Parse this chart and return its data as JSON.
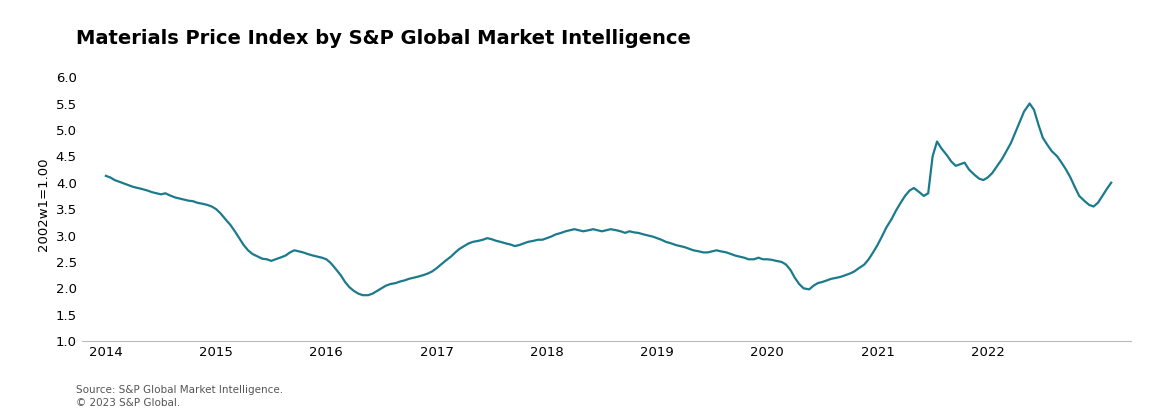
{
  "title": "Materials Price Index by S&P Global Market Intelligence",
  "ylabel": "2002w1=1.00",
  "source_line1": "Source: S&P Global Market Intelligence.",
  "source_line2": "© 2023 S&P Global.",
  "line_color": "#1b7b8c",
  "line_width": 1.6,
  "background_color": "#ffffff",
  "ylim": [
    1.0,
    6.2
  ],
  "yticks": [
    1.0,
    1.5,
    2.0,
    2.5,
    3.0,
    3.5,
    4.0,
    4.5,
    5.0,
    5.5,
    6.0
  ],
  "title_fontsize": 14,
  "axis_fontsize": 9.5,
  "source_fontsize": 7.5,
  "data_points": [
    [
      2014.0,
      4.13
    ],
    [
      2014.04,
      4.1
    ],
    [
      2014.08,
      4.05
    ],
    [
      2014.12,
      4.02
    ],
    [
      2014.17,
      3.98
    ],
    [
      2014.21,
      3.95
    ],
    [
      2014.25,
      3.92
    ],
    [
      2014.29,
      3.9
    ],
    [
      2014.33,
      3.88
    ],
    [
      2014.38,
      3.85
    ],
    [
      2014.42,
      3.82
    ],
    [
      2014.46,
      3.8
    ],
    [
      2014.5,
      3.78
    ],
    [
      2014.54,
      3.8
    ],
    [
      2014.58,
      3.76
    ],
    [
      2014.63,
      3.72
    ],
    [
      2014.67,
      3.7
    ],
    [
      2014.71,
      3.68
    ],
    [
      2014.75,
      3.66
    ],
    [
      2014.79,
      3.65
    ],
    [
      2014.83,
      3.62
    ],
    [
      2014.88,
      3.6
    ],
    [
      2014.92,
      3.58
    ],
    [
      2014.96,
      3.55
    ],
    [
      2015.0,
      3.5
    ],
    [
      2015.04,
      3.42
    ],
    [
      2015.08,
      3.32
    ],
    [
      2015.13,
      3.2
    ],
    [
      2015.17,
      3.08
    ],
    [
      2015.21,
      2.95
    ],
    [
      2015.25,
      2.82
    ],
    [
      2015.29,
      2.72
    ],
    [
      2015.33,
      2.65
    ],
    [
      2015.38,
      2.6
    ],
    [
      2015.42,
      2.56
    ],
    [
      2015.46,
      2.55
    ],
    [
      2015.5,
      2.52
    ],
    [
      2015.54,
      2.55
    ],
    [
      2015.58,
      2.58
    ],
    [
      2015.63,
      2.62
    ],
    [
      2015.67,
      2.68
    ],
    [
      2015.71,
      2.72
    ],
    [
      2015.75,
      2.7
    ],
    [
      2015.79,
      2.68
    ],
    [
      2015.83,
      2.65
    ],
    [
      2015.88,
      2.62
    ],
    [
      2015.92,
      2.6
    ],
    [
      2015.96,
      2.58
    ],
    [
      2016.0,
      2.55
    ],
    [
      2016.04,
      2.48
    ],
    [
      2016.08,
      2.38
    ],
    [
      2016.13,
      2.25
    ],
    [
      2016.17,
      2.12
    ],
    [
      2016.21,
      2.02
    ],
    [
      2016.25,
      1.95
    ],
    [
      2016.29,
      1.9
    ],
    [
      2016.33,
      1.87
    ],
    [
      2016.38,
      1.87
    ],
    [
      2016.42,
      1.9
    ],
    [
      2016.46,
      1.95
    ],
    [
      2016.5,
      2.0
    ],
    [
      2016.54,
      2.05
    ],
    [
      2016.58,
      2.08
    ],
    [
      2016.63,
      2.1
    ],
    [
      2016.67,
      2.13
    ],
    [
      2016.71,
      2.15
    ],
    [
      2016.75,
      2.18
    ],
    [
      2016.79,
      2.2
    ],
    [
      2016.83,
      2.22
    ],
    [
      2016.88,
      2.25
    ],
    [
      2016.92,
      2.28
    ],
    [
      2016.96,
      2.32
    ],
    [
      2017.0,
      2.38
    ],
    [
      2017.04,
      2.45
    ],
    [
      2017.08,
      2.52
    ],
    [
      2017.13,
      2.6
    ],
    [
      2017.17,
      2.68
    ],
    [
      2017.21,
      2.75
    ],
    [
      2017.25,
      2.8
    ],
    [
      2017.29,
      2.85
    ],
    [
      2017.33,
      2.88
    ],
    [
      2017.38,
      2.9
    ],
    [
      2017.42,
      2.92
    ],
    [
      2017.46,
      2.95
    ],
    [
      2017.5,
      2.93
    ],
    [
      2017.54,
      2.9
    ],
    [
      2017.58,
      2.88
    ],
    [
      2017.63,
      2.85
    ],
    [
      2017.67,
      2.83
    ],
    [
      2017.71,
      2.8
    ],
    [
      2017.75,
      2.82
    ],
    [
      2017.79,
      2.85
    ],
    [
      2017.83,
      2.88
    ],
    [
      2017.88,
      2.9
    ],
    [
      2017.92,
      2.92
    ],
    [
      2017.96,
      2.92
    ],
    [
      2018.0,
      2.95
    ],
    [
      2018.04,
      2.98
    ],
    [
      2018.08,
      3.02
    ],
    [
      2018.13,
      3.05
    ],
    [
      2018.17,
      3.08
    ],
    [
      2018.21,
      3.1
    ],
    [
      2018.25,
      3.12
    ],
    [
      2018.29,
      3.1
    ],
    [
      2018.33,
      3.08
    ],
    [
      2018.38,
      3.1
    ],
    [
      2018.42,
      3.12
    ],
    [
      2018.46,
      3.1
    ],
    [
      2018.5,
      3.08
    ],
    [
      2018.54,
      3.1
    ],
    [
      2018.58,
      3.12
    ],
    [
      2018.63,
      3.1
    ],
    [
      2018.67,
      3.08
    ],
    [
      2018.71,
      3.05
    ],
    [
      2018.75,
      3.08
    ],
    [
      2018.79,
      3.06
    ],
    [
      2018.83,
      3.05
    ],
    [
      2018.88,
      3.02
    ],
    [
      2018.92,
      3.0
    ],
    [
      2018.96,
      2.98
    ],
    [
      2019.0,
      2.95
    ],
    [
      2019.04,
      2.92
    ],
    [
      2019.08,
      2.88
    ],
    [
      2019.13,
      2.85
    ],
    [
      2019.17,
      2.82
    ],
    [
      2019.21,
      2.8
    ],
    [
      2019.25,
      2.78
    ],
    [
      2019.29,
      2.75
    ],
    [
      2019.33,
      2.72
    ],
    [
      2019.38,
      2.7
    ],
    [
      2019.42,
      2.68
    ],
    [
      2019.46,
      2.68
    ],
    [
      2019.5,
      2.7
    ],
    [
      2019.54,
      2.72
    ],
    [
      2019.58,
      2.7
    ],
    [
      2019.63,
      2.68
    ],
    [
      2019.67,
      2.65
    ],
    [
      2019.71,
      2.62
    ],
    [
      2019.75,
      2.6
    ],
    [
      2019.79,
      2.58
    ],
    [
      2019.83,
      2.55
    ],
    [
      2019.88,
      2.55
    ],
    [
      2019.92,
      2.58
    ],
    [
      2019.96,
      2.55
    ],
    [
      2020.0,
      2.55
    ],
    [
      2020.04,
      2.54
    ],
    [
      2020.08,
      2.52
    ],
    [
      2020.13,
      2.5
    ],
    [
      2020.17,
      2.45
    ],
    [
      2020.21,
      2.35
    ],
    [
      2020.25,
      2.2
    ],
    [
      2020.29,
      2.08
    ],
    [
      2020.33,
      2.0
    ],
    [
      2020.38,
      1.98
    ],
    [
      2020.42,
      2.05
    ],
    [
      2020.46,
      2.1
    ],
    [
      2020.5,
      2.12
    ],
    [
      2020.54,
      2.15
    ],
    [
      2020.58,
      2.18
    ],
    [
      2020.63,
      2.2
    ],
    [
      2020.67,
      2.22
    ],
    [
      2020.71,
      2.25
    ],
    [
      2020.75,
      2.28
    ],
    [
      2020.79,
      2.32
    ],
    [
      2020.83,
      2.38
    ],
    [
      2020.88,
      2.45
    ],
    [
      2020.92,
      2.55
    ],
    [
      2020.96,
      2.68
    ],
    [
      2021.0,
      2.82
    ],
    [
      2021.04,
      2.98
    ],
    [
      2021.08,
      3.15
    ],
    [
      2021.13,
      3.32
    ],
    [
      2021.17,
      3.48
    ],
    [
      2021.21,
      3.62
    ],
    [
      2021.25,
      3.75
    ],
    [
      2021.29,
      3.85
    ],
    [
      2021.33,
      3.9
    ],
    [
      2021.38,
      3.82
    ],
    [
      2021.42,
      3.75
    ],
    [
      2021.46,
      3.8
    ],
    [
      2021.5,
      4.5
    ],
    [
      2021.54,
      4.78
    ],
    [
      2021.58,
      4.65
    ],
    [
      2021.63,
      4.52
    ],
    [
      2021.67,
      4.4
    ],
    [
      2021.71,
      4.32
    ],
    [
      2021.75,
      4.35
    ],
    [
      2021.79,
      4.38
    ],
    [
      2021.83,
      4.25
    ],
    [
      2021.88,
      4.15
    ],
    [
      2021.92,
      4.08
    ],
    [
      2021.96,
      4.05
    ],
    [
      2022.0,
      4.1
    ],
    [
      2022.04,
      4.18
    ],
    [
      2022.08,
      4.3
    ],
    [
      2022.13,
      4.45
    ],
    [
      2022.17,
      4.6
    ],
    [
      2022.21,
      4.75
    ],
    [
      2022.25,
      4.95
    ],
    [
      2022.29,
      5.15
    ],
    [
      2022.33,
      5.35
    ],
    [
      2022.38,
      5.5
    ],
    [
      2022.42,
      5.38
    ],
    [
      2022.46,
      5.1
    ],
    [
      2022.5,
      4.85
    ],
    [
      2022.54,
      4.72
    ],
    [
      2022.58,
      4.6
    ],
    [
      2022.63,
      4.5
    ],
    [
      2022.67,
      4.38
    ],
    [
      2022.71,
      4.25
    ],
    [
      2022.75,
      4.1
    ],
    [
      2022.79,
      3.92
    ],
    [
      2022.83,
      3.75
    ],
    [
      2022.88,
      3.65
    ],
    [
      2022.92,
      3.58
    ],
    [
      2022.96,
      3.55
    ],
    [
      2023.0,
      3.62
    ],
    [
      2023.04,
      3.75
    ],
    [
      2023.08,
      3.88
    ],
    [
      2023.12,
      4.0
    ]
  ]
}
